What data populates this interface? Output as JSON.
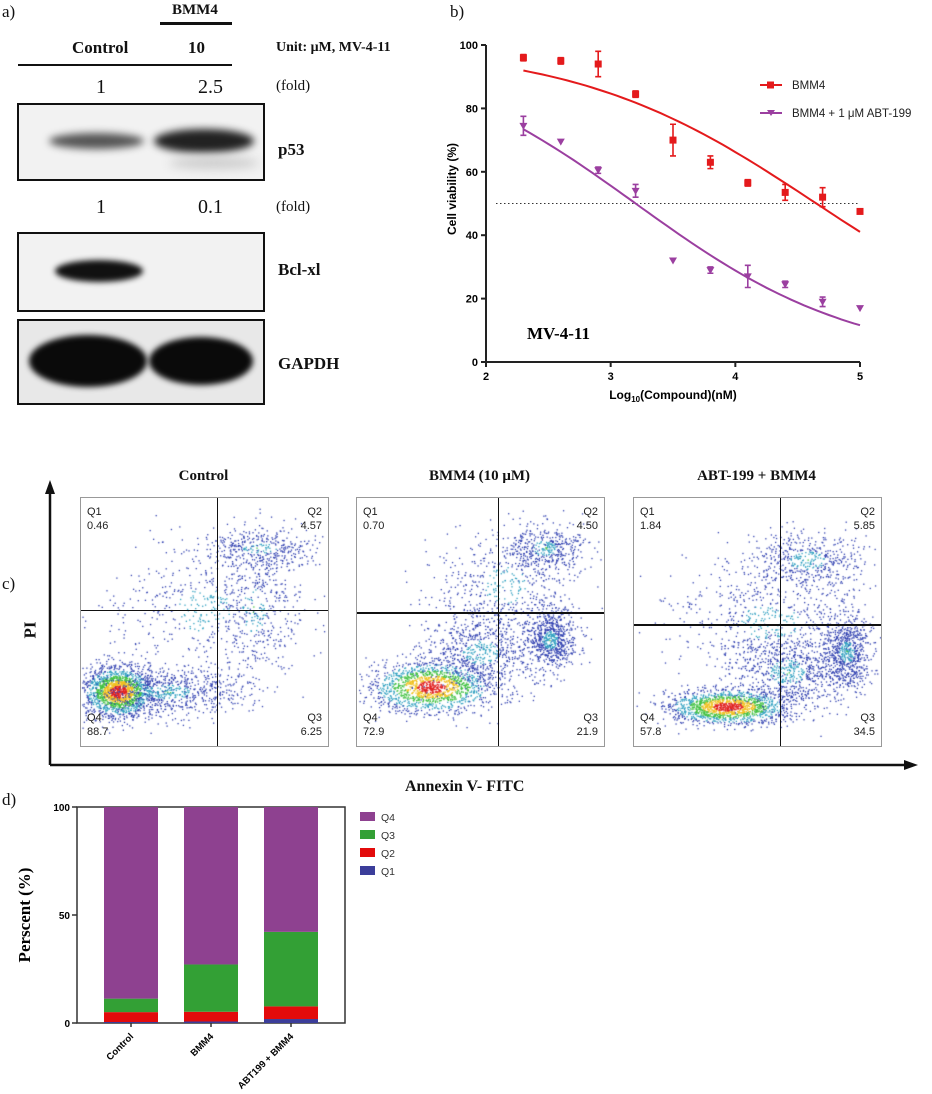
{
  "panel_a": {
    "label": "a)",
    "group_header": "BMM4",
    "col_control": "Control",
    "col_dose": "10",
    "unit": "Unit: μM, MV-4-11",
    "p53_fold": {
      "control": "1",
      "treated": "2.5",
      "unit": "(fold)"
    },
    "bclxl_fold": {
      "control": "1",
      "treated": "0.1",
      "unit": "(fold)"
    },
    "blots": [
      "p53",
      "Bcl-xl",
      "GAPDH"
    ]
  },
  "chart_data": [
    {
      "id": "b",
      "panel_label": "b)",
      "type": "scatter",
      "title": "",
      "annotation": "MV-4-11",
      "xlabel_prefix": "Log",
      "xlabel_sub": "10",
      "xlabel_suffix": "(Compound)(nM)",
      "ylabel": "Cell viability (%)",
      "xlim": [
        2,
        5
      ],
      "ylim": [
        0,
        100
      ],
      "xticks": [
        "2",
        "3",
        "4",
        "5"
      ],
      "yticks": [
        "0",
        "20",
        "40",
        "60",
        "80",
        "100"
      ],
      "reference_line_y": 50,
      "legend_position": "top-right",
      "x": [
        2.3,
        2.6,
        2.9,
        3.2,
        3.5,
        3.8,
        4.1,
        4.4,
        4.7,
        5.0
      ],
      "series": [
        {
          "name": "BMM4",
          "color": "#e41a1c",
          "marker": "square",
          "values": [
            96,
            95,
            94,
            84.5,
            70,
            63,
            56.5,
            53.5,
            52,
            47.5
          ],
          "errors": [
            1,
            1,
            4,
            1,
            5,
            2,
            1,
            2.5,
            3,
            0
          ],
          "fit": {
            "top": 100,
            "bottom": 0,
            "logIC50": 4.65,
            "hill": 0.45
          }
        },
        {
          "name": "BMM4 + 1 μM ABT-199",
          "color": "#9b3fa0",
          "marker": "triangle-down",
          "values": [
            74.5,
            69.5,
            60.5,
            54,
            32,
            29,
            27,
            24.5,
            19,
            17
          ],
          "errors": [
            3,
            0,
            1,
            2,
            0,
            1,
            3.5,
            1,
            1.5,
            0
          ],
          "fit": {
            "top": 100,
            "bottom": 0,
            "logIC50": 3.2,
            "hill": 0.49
          }
        }
      ]
    },
    {
      "id": "c",
      "panel_label": "c)",
      "type": "scatter",
      "xlabel": "Annexin V- FITC",
      "ylabel": "PI",
      "plots": [
        {
          "title": "Control",
          "q1": "0.46",
          "q2": "4.57",
          "q3": "6.25",
          "q4": "88.7"
        },
        {
          "title": "BMM4 (10 μM)",
          "q1": "0.70",
          "q2": "4.50",
          "q3": "21.9",
          "q4": "72.9"
        },
        {
          "title": "ABT-199 + BMM4",
          "q1": "1.84",
          "q2": "5.85",
          "q3": "34.5",
          "q4": "57.8"
        }
      ],
      "quadrant_names": [
        "Q1",
        "Q2",
        "Q3",
        "Q4"
      ]
    },
    {
      "id": "d",
      "panel_label": "d)",
      "type": "bar",
      "stacked": true,
      "ylabel": "Perscent  (%)",
      "ylim": [
        0,
        100
      ],
      "yticks": [
        "0",
        "50",
        "100"
      ],
      "categories": [
        "Control",
        "BMM4",
        "ABT199 + BMM4"
      ],
      "legend_position": "right",
      "series": [
        {
          "name": "Q1",
          "color": "#3b3d9a",
          "values": [
            0.46,
            0.7,
            1.84
          ]
        },
        {
          "name": "Q2",
          "color": "#e30b0b",
          "values": [
            4.57,
            4.5,
            5.85
          ]
        },
        {
          "name": "Q3",
          "color": "#33a035",
          "values": [
            6.25,
            21.9,
            34.5
          ]
        },
        {
          "name": "Q4",
          "color": "#8e4190",
          "values": [
            88.7,
            72.9,
            57.8
          ]
        }
      ]
    }
  ]
}
